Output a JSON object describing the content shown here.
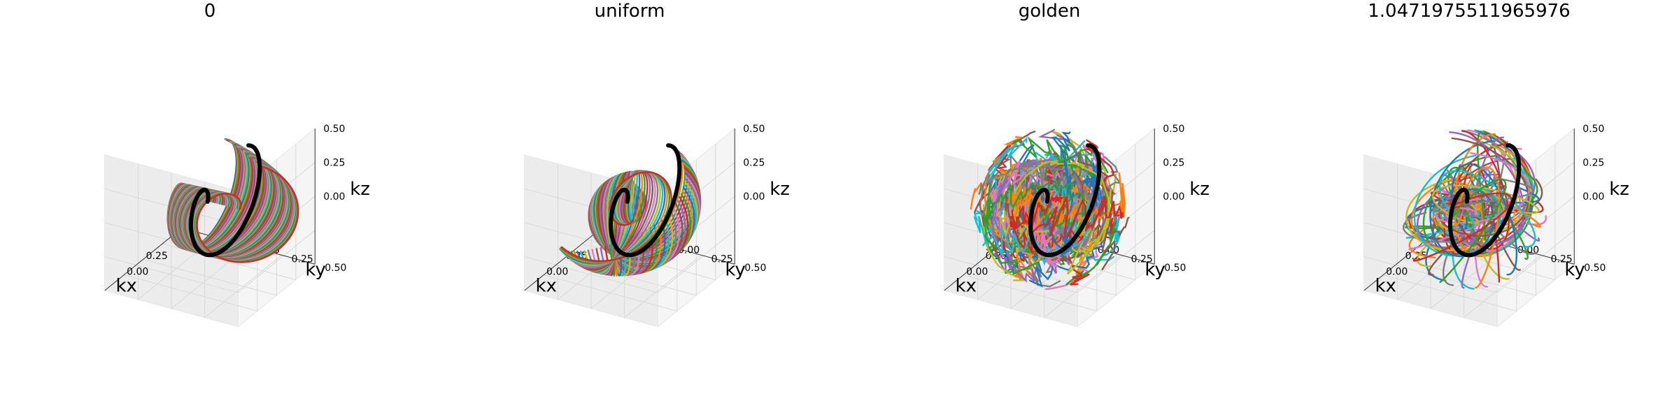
{
  "chart_data": [
    {
      "type": "line",
      "projection": "3d",
      "title": "0",
      "xlabel": "kx",
      "ylabel": "ky",
      "zlabel": "kz",
      "xticks": [
        "0.00",
        "0.25"
      ],
      "yticks": [
        "0.00",
        "0.25",
        "0.50"
      ],
      "zticks": [
        "0.00",
        "0.25",
        "0.50"
      ],
      "xlim": [
        -0.5,
        0.5
      ],
      "ylim": [
        -0.5,
        0.5
      ],
      "zlim": [
        -0.5,
        0.5
      ],
      "grid": true,
      "rotation_mode": "none",
      "highlighted_trajectory_color": "#000000",
      "trajectory_count_estimate": 64
    },
    {
      "type": "line",
      "projection": "3d",
      "title": "uniform",
      "xlabel": "kx",
      "ylabel": "ky",
      "zlabel": "kz",
      "xticks": [
        "0.00",
        "0.25"
      ],
      "yticks": [
        "0.00",
        "0.25",
        "0.50"
      ],
      "zticks": [
        "0.00",
        "0.25",
        "0.50"
      ],
      "xlim": [
        -0.5,
        0.5
      ],
      "ylim": [
        -0.5,
        0.5
      ],
      "zlim": [
        -0.5,
        0.5
      ],
      "grid": true,
      "rotation_mode": "uniform",
      "highlighted_trajectory_color": "#000000",
      "trajectory_count_estimate": 64
    },
    {
      "type": "line",
      "projection": "3d",
      "title": "golden",
      "xlabel": "kx",
      "ylabel": "ky",
      "zlabel": "kz",
      "xticks": [
        "0.00",
        "0.25"
      ],
      "yticks": [
        "0.00",
        "0.25",
        "0.50"
      ],
      "zticks": [
        "0.00",
        "0.25",
        "0.50"
      ],
      "xlim": [
        -0.5,
        0.5
      ],
      "ylim": [
        -0.5,
        0.5
      ],
      "zlim": [
        -0.5,
        0.5
      ],
      "grid": true,
      "rotation_mode": "golden",
      "highlighted_trajectory_color": "#000000",
      "trajectory_count_estimate": 64
    },
    {
      "type": "line",
      "projection": "3d",
      "title": "1.0471975511965976",
      "xlabel": "kx",
      "ylabel": "ky",
      "zlabel": "kz",
      "xticks": [
        "0.00",
        "0.25"
      ],
      "yticks": [
        "0.00",
        "0.25",
        "0.50"
      ],
      "zticks": [
        "0.00",
        "0.25",
        "0.50"
      ],
      "xlim": [
        -0.5,
        0.5
      ],
      "ylim": [
        -0.5,
        0.5
      ],
      "zlim": [
        -0.5,
        0.5
      ],
      "grid": true,
      "rotation_mode": "angle",
      "highlighted_trajectory_color": "#000000",
      "trajectory_count_estimate": 64
    }
  ],
  "colors": [
    "#1f77b4",
    "#ff7f0e",
    "#2ca02c",
    "#d62728",
    "#9467bd",
    "#8c564b",
    "#e377c2",
    "#7f7f7f",
    "#bcbd22",
    "#17becf"
  ]
}
